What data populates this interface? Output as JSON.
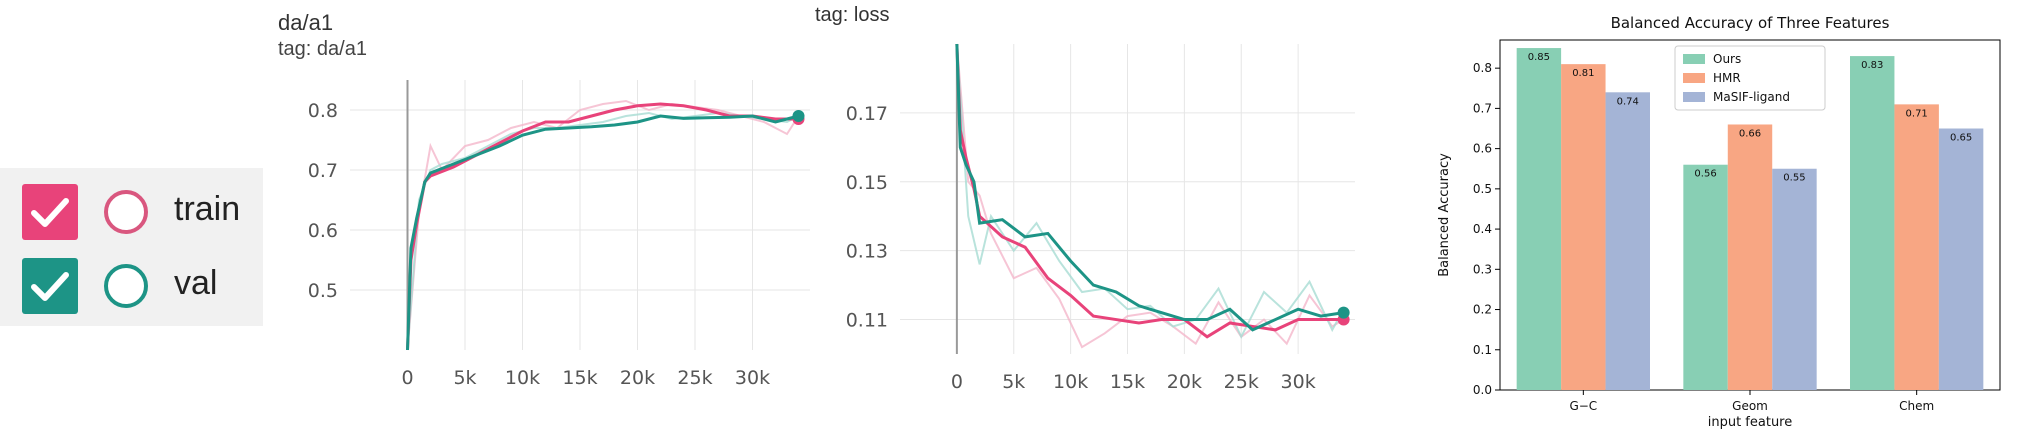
{
  "legend": {
    "items": [
      {
        "label": "train",
        "color": "#e8437a",
        "circle_color": "#d9577f",
        "checked": true
      },
      {
        "label": "val",
        "color": "#1d9486",
        "circle_color": "#1d9486",
        "checked": true
      }
    ]
  },
  "chart_data": [
    {
      "type": "line",
      "title": "da/a1",
      "subtitle": "tag: da/a1",
      "xlim": [
        -5000,
        35000
      ],
      "ylim": [
        0.4,
        0.85
      ],
      "x_ticks": [
        0,
        5000,
        10000,
        15000,
        20000,
        25000,
        30000
      ],
      "x_tick_labels": [
        "0",
        "5k",
        "10k",
        "15k",
        "20k",
        "25k",
        "30k"
      ],
      "y_ticks": [
        0.5,
        0.6,
        0.7,
        0.8
      ],
      "y_tick_labels": [
        "0.5",
        "0.6",
        "0.7",
        "0.8"
      ],
      "series": [
        {
          "name": "train",
          "color": "#e8437a",
          "x": [
            0,
            300,
            800,
            1500,
            2000,
            4000,
            6000,
            8000,
            10000,
            12000,
            14000,
            16000,
            18000,
            20000,
            22000,
            24000,
            26000,
            28000,
            30000,
            32000,
            33000,
            34000
          ],
          "y": [
            0.4,
            0.55,
            0.61,
            0.68,
            0.69,
            0.705,
            0.725,
            0.745,
            0.765,
            0.78,
            0.78,
            0.79,
            0.8,
            0.807,
            0.81,
            0.807,
            0.8,
            0.79,
            0.79,
            0.785,
            0.785,
            0.785
          ]
        },
        {
          "name": "val",
          "color": "#1d9486",
          "x": [
            0,
            300,
            800,
            1500,
            2000,
            4000,
            6000,
            8000,
            10000,
            12000,
            14000,
            16000,
            18000,
            20000,
            22000,
            24000,
            26000,
            28000,
            30000,
            32000,
            33000,
            34000
          ],
          "y": [
            0.4,
            0.57,
            0.62,
            0.68,
            0.695,
            0.71,
            0.725,
            0.74,
            0.758,
            0.768,
            0.77,
            0.772,
            0.775,
            0.78,
            0.79,
            0.786,
            0.787,
            0.788,
            0.79,
            0.78,
            0.785,
            0.79
          ]
        }
      ],
      "smoothed_raw": [
        {
          "color": "#f4b6cb",
          "x": [
            0,
            1000,
            2000,
            3000,
            5000,
            7000,
            9000,
            11000,
            13000,
            15000,
            17000,
            19000,
            21000,
            23000,
            25000,
            27000,
            29000,
            31000,
            33000,
            34000
          ],
          "y": [
            0.4,
            0.63,
            0.74,
            0.7,
            0.74,
            0.75,
            0.77,
            0.78,
            0.77,
            0.8,
            0.81,
            0.815,
            0.8,
            0.81,
            0.805,
            0.8,
            0.79,
            0.78,
            0.76,
            0.79
          ]
        },
        {
          "color": "#a8dcd3",
          "x": [
            0,
            1000,
            2000,
            3000,
            5000,
            7000,
            9000,
            11000,
            13000,
            15000,
            17000,
            19000,
            21000,
            23000,
            25000,
            27000,
            29000,
            31000,
            33000,
            34000
          ],
          "y": [
            0.4,
            0.65,
            0.7,
            0.71,
            0.72,
            0.74,
            0.76,
            0.77,
            0.77,
            0.775,
            0.78,
            0.79,
            0.795,
            0.785,
            0.79,
            0.795,
            0.79,
            0.785,
            0.78,
            0.79
          ]
        }
      ]
    },
    {
      "type": "line",
      "title": "tag: loss",
      "xlim": [
        -5000,
        35000
      ],
      "ylim": [
        0.1,
        0.19
      ],
      "x_ticks": [
        0,
        5000,
        10000,
        15000,
        20000,
        25000,
        30000
      ],
      "x_tick_labels": [
        "0",
        "5k",
        "10k",
        "15k",
        "20k",
        "25k",
        "30k"
      ],
      "y_ticks": [
        0.11,
        0.13,
        0.15,
        0.17
      ],
      "y_tick_labels": [
        "0.11",
        "0.13",
        "0.15",
        "0.17"
      ],
      "series": [
        {
          "name": "train",
          "color": "#e8437a",
          "x": [
            0,
            300,
            800,
            1500,
            2000,
            4000,
            6000,
            8000,
            10000,
            12000,
            14000,
            16000,
            18000,
            20000,
            22000,
            24000,
            26000,
            28000,
            30000,
            32000,
            34000
          ],
          "y": [
            0.19,
            0.165,
            0.157,
            0.148,
            0.14,
            0.134,
            0.131,
            0.122,
            0.117,
            0.111,
            0.11,
            0.109,
            0.11,
            0.11,
            0.105,
            0.109,
            0.108,
            0.107,
            0.11,
            0.11,
            0.11
          ]
        },
        {
          "name": "val",
          "color": "#1d9486",
          "x": [
            0,
            300,
            800,
            1500,
            2000,
            4000,
            6000,
            8000,
            10000,
            12000,
            14000,
            16000,
            18000,
            20000,
            22000,
            24000,
            26000,
            28000,
            30000,
            32000,
            34000
          ],
          "y": [
            0.19,
            0.16,
            0.155,
            0.15,
            0.138,
            0.139,
            0.134,
            0.135,
            0.127,
            0.12,
            0.118,
            0.114,
            0.112,
            0.11,
            0.11,
            0.113,
            0.107,
            0.11,
            0.113,
            0.111,
            0.112
          ]
        }
      ],
      "smoothed_raw": [
        {
          "color": "#f4b6cb",
          "x": [
            0,
            1000,
            2000,
            3000,
            5000,
            7000,
            9000,
            11000,
            13000,
            15000,
            17000,
            19000,
            21000,
            23000,
            25000,
            27000,
            29000,
            31000,
            33000,
            34000
          ],
          "y": [
            0.19,
            0.15,
            0.146,
            0.135,
            0.122,
            0.125,
            0.116,
            0.102,
            0.106,
            0.111,
            0.112,
            0.108,
            0.103,
            0.115,
            0.105,
            0.11,
            0.103,
            0.117,
            0.108,
            0.11
          ]
        },
        {
          "color": "#a8dcd3",
          "x": [
            0,
            1000,
            2000,
            3000,
            5000,
            7000,
            9000,
            11000,
            13000,
            15000,
            17000,
            19000,
            21000,
            23000,
            25000,
            27000,
            29000,
            31000,
            33000,
            34000
          ],
          "y": [
            0.19,
            0.14,
            0.126,
            0.14,
            0.13,
            0.138,
            0.127,
            0.118,
            0.119,
            0.113,
            0.114,
            0.108,
            0.11,
            0.119,
            0.105,
            0.118,
            0.112,
            0.121,
            0.107,
            0.113
          ]
        }
      ]
    },
    {
      "type": "bar",
      "title": "Balanced Accuracy of Three Features",
      "xlabel": "input feature",
      "ylabel": "Balanced Accuracy",
      "ylim": [
        0,
        0.87
      ],
      "y_ticks": [
        0.0,
        0.1,
        0.2,
        0.3,
        0.4,
        0.5,
        0.6,
        0.7,
        0.8
      ],
      "y_tick_labels": [
        "0.0",
        "0.1",
        "0.2",
        "0.3",
        "0.4",
        "0.5",
        "0.6",
        "0.7",
        "0.8"
      ],
      "categories": [
        "G−C",
        "Geom",
        "Chem"
      ],
      "legend_position": "top-center",
      "series": [
        {
          "name": "Ours",
          "color": "#88cfb4",
          "values": [
            0.85,
            0.56,
            0.83
          ],
          "labels": [
            "0.85",
            "0.56",
            "0.83"
          ]
        },
        {
          "name": "HMR",
          "color": "#f8a683",
          "values": [
            0.81,
            0.66,
            0.71
          ],
          "labels": [
            "0.81",
            "0.66",
            "0.71"
          ]
        },
        {
          "name": "MaSIF-ligand",
          "color": "#a4b4d6",
          "values": [
            0.74,
            0.55,
            0.65
          ],
          "labels": [
            "0.74",
            "0.55",
            "0.65"
          ]
        }
      ]
    }
  ]
}
